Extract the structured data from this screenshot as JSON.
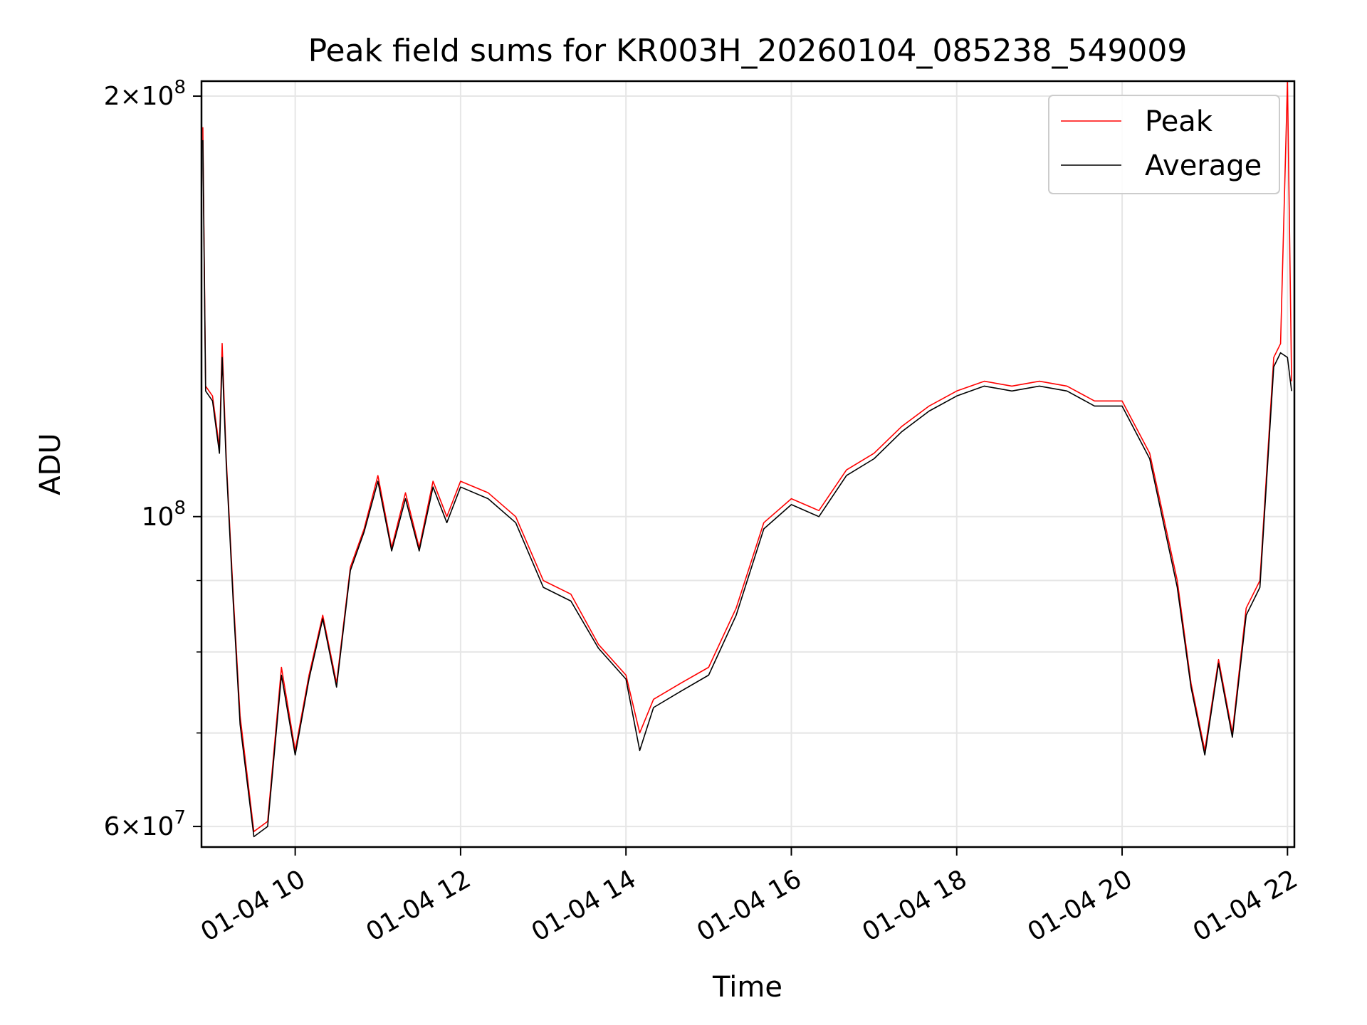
{
  "chart_data": {
    "type": "line",
    "title": "Peak field sums for KR003H_20260104_085238_549009",
    "xlabel": "Time",
    "ylabel": "ADU",
    "yscale": "log",
    "grid": true,
    "legend_position": "top-right",
    "xlim": [
      "2026-01-04 08:52",
      "2026-01-04 22:05"
    ],
    "ylim": [
      58000000,
      205000000
    ],
    "x_ticks": [
      "2026-01-04 10:00",
      "2026-01-04 12:00",
      "2026-01-04 14:00",
      "2026-01-04 16:00",
      "2026-01-04 18:00",
      "2026-01-04 20:00",
      "2026-01-04 22:00"
    ],
    "x_tick_labels": [
      "01-04 10",
      "01-04 12",
      "01-04 14",
      "01-04 16",
      "01-04 18",
      "01-04 20",
      "01-04 22"
    ],
    "y_major_ticks": [
      60000000,
      100000000,
      200000000
    ],
    "y_tick_labels": [
      {
        "mantissa": "6",
        "exponent": "7"
      },
      {
        "mantissa": "",
        "exponent": "8"
      },
      {
        "mantissa": "2",
        "exponent": "8"
      }
    ],
    "y_minor_ticks": [
      70000000,
      80000000,
      90000000
    ],
    "x": [
      "2026-01-04 08:53",
      "2026-01-04 08:55",
      "2026-01-04 09:00",
      "2026-01-04 09:05",
      "2026-01-04 09:07",
      "2026-01-04 09:10",
      "2026-01-04 09:15",
      "2026-01-04 09:20",
      "2026-01-04 09:30",
      "2026-01-04 09:40",
      "2026-01-04 09:50",
      "2026-01-04 10:00",
      "2026-01-04 10:10",
      "2026-01-04 10:20",
      "2026-01-04 10:30",
      "2026-01-04 10:40",
      "2026-01-04 10:50",
      "2026-01-04 11:00",
      "2026-01-04 11:10",
      "2026-01-04 11:20",
      "2026-01-04 11:30",
      "2026-01-04 11:40",
      "2026-01-04 11:50",
      "2026-01-04 12:00",
      "2026-01-04 12:20",
      "2026-01-04 12:40",
      "2026-01-04 13:00",
      "2026-01-04 13:20",
      "2026-01-04 13:40",
      "2026-01-04 14:00",
      "2026-01-04 14:10",
      "2026-01-04 14:20",
      "2026-01-04 14:40",
      "2026-01-04 15:00",
      "2026-01-04 15:20",
      "2026-01-04 15:40",
      "2026-01-04 16:00",
      "2026-01-04 16:20",
      "2026-01-04 16:40",
      "2026-01-04 17:00",
      "2026-01-04 17:20",
      "2026-01-04 17:40",
      "2026-01-04 18:00",
      "2026-01-04 18:20",
      "2026-01-04 18:40",
      "2026-01-04 19:00",
      "2026-01-04 19:20",
      "2026-01-04 19:40",
      "2026-01-04 20:00",
      "2026-01-04 20:20",
      "2026-01-04 20:40",
      "2026-01-04 20:50",
      "2026-01-04 21:00",
      "2026-01-04 21:10",
      "2026-01-04 21:20",
      "2026-01-04 21:30",
      "2026-01-04 21:40",
      "2026-01-04 21:50",
      "2026-01-04 21:55",
      "2026-01-04 22:00",
      "2026-01-04 22:03"
    ],
    "series": [
      {
        "name": "Peak",
        "color": "#ff0000",
        "values": [
          190000000,
          124000000,
          122000000,
          112000000,
          133000000,
          110000000,
          88000000,
          72000000,
          59500000,
          60500000,
          78000000,
          68000000,
          77000000,
          85000000,
          76000000,
          92000000,
          98000000,
          107000000,
          95000000,
          104000000,
          95000000,
          106000000,
          100000000,
          106000000,
          104000000,
          100000000,
          90000000,
          88000000,
          81000000,
          77000000,
          70000000,
          74000000,
          76000000,
          78000000,
          86000000,
          99000000,
          103000000,
          101000000,
          108000000,
          111000000,
          116000000,
          120000000,
          123000000,
          125000000,
          124000000,
          125000000,
          124000000,
          121000000,
          121000000,
          111000000,
          90000000,
          76000000,
          68000000,
          79000000,
          70000000,
          86000000,
          90000000,
          130000000,
          133000000,
          205000000,
          125000000
        ]
      },
      {
        "name": "Average",
        "color": "#000000",
        "values": [
          186000000,
          123000000,
          121000000,
          111000000,
          130000000,
          109000000,
          87000000,
          71000000,
          59000000,
          60000000,
          77000000,
          67500000,
          76500000,
          84500000,
          75500000,
          91500000,
          97500000,
          106000000,
          94500000,
          103000000,
          94500000,
          105000000,
          99000000,
          105000000,
          103000000,
          99000000,
          89000000,
          87000000,
          80500000,
          76500000,
          68000000,
          73000000,
          75000000,
          77000000,
          85000000,
          98000000,
          102000000,
          100000000,
          107000000,
          110000000,
          115000000,
          119000000,
          122000000,
          124000000,
          123000000,
          124000000,
          123000000,
          120000000,
          120000000,
          110000000,
          89000000,
          75500000,
          67500000,
          78500000,
          69500000,
          85000000,
          89000000,
          128000000,
          131000000,
          130000000,
          123000000
        ]
      }
    ]
  },
  "legend": {
    "peak_label": "Peak",
    "average_label": "Average"
  },
  "colors": {
    "peak": "#ff0000",
    "average": "#000000",
    "grid": "#e6e6e6"
  }
}
